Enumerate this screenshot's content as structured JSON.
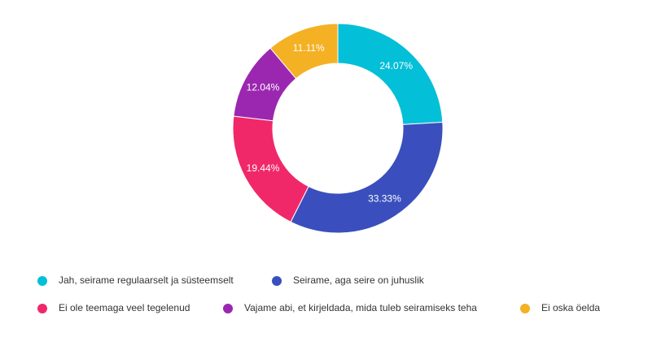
{
  "chart_data": {
    "type": "pie",
    "categories": [
      "Jah, seirame regulaarselt ja süsteemselt",
      "Seirame, aga seire on juhuslik",
      "Ei ole teemaga veel tegelenud",
      "Vajame abi, et kirjeldada, mida tuleb seiramiseks teha",
      "Ei oska öelda"
    ],
    "values": [
      24.07,
      33.33,
      19.44,
      12.04,
      11.11
    ],
    "value_labels": [
      "24.07%",
      "33.33%",
      "19.44%",
      "12.04%",
      "11.11%"
    ],
    "colors": [
      "#04bfd8",
      "#3a4fbd",
      "#f0286a",
      "#9b27b0",
      "#f4b124"
    ],
    "donut": true
  }
}
